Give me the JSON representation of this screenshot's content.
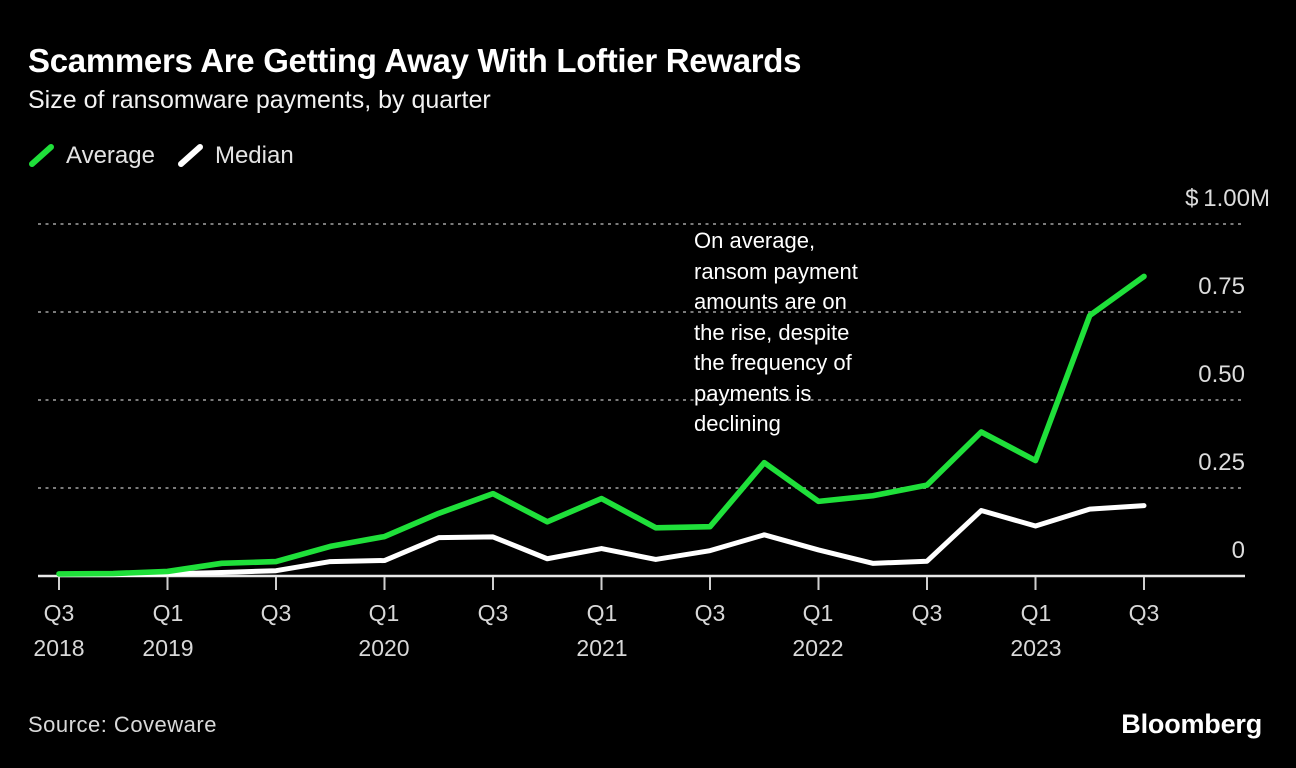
{
  "header": {
    "title": "Scammers Are Getting Away With Loftier Rewards",
    "subtitle": "Size of ransomware payments, by quarter"
  },
  "legend": [
    {
      "label": "Average",
      "color": "#1FE03A"
    },
    {
      "label": "Median",
      "color": "#FFFFFF"
    }
  ],
  "annotation": {
    "text": "On average, ransom payment amounts are on the rise, despite the frequency of payments is declining",
    "lines": [
      "On average,",
      "ransom payment",
      "amounts are on",
      "the rise, despite",
      "the frequency of",
      "payments is",
      "declining"
    ]
  },
  "footer": {
    "source": "Source: Coveware",
    "logo": "Bloomberg"
  },
  "colors": {
    "background": "#000000",
    "average_line": "#1FE03A",
    "median_line": "#FFFFFF",
    "gridline": "#7a7a7a",
    "axis": "#e8e8e8",
    "text": "#dcdcdc"
  },
  "chart_data": {
    "type": "line",
    "title": "Scammers Are Getting Away With Loftier Rewards",
    "subtitle": "Size of ransomware payments, by quarter",
    "unit": "USD millions",
    "grid": "horizontal-dashed",
    "legend_position": "top-left",
    "ylim": [
      0,
      1.0
    ],
    "x": [
      "Q3 2018",
      "Q4 2018",
      "Q1 2019",
      "Q2 2019",
      "Q3 2019",
      "Q4 2019",
      "Q1 2020",
      "Q2 2020",
      "Q3 2020",
      "Q4 2020",
      "Q1 2021",
      "Q2 2021",
      "Q3 2021",
      "Q4 2021",
      "Q1 2022",
      "Q2 2022",
      "Q3 2022",
      "Q4 2022",
      "Q1 2023",
      "Q2 2023",
      "Q3 2023"
    ],
    "series": [
      {
        "name": "Average",
        "color": "#1FE03A",
        "values": [
          0.006,
          0.007,
          0.013,
          0.036,
          0.041,
          0.084,
          0.112,
          0.178,
          0.234,
          0.154,
          0.22,
          0.137,
          0.14,
          0.322,
          0.212,
          0.228,
          0.258,
          0.409,
          0.328,
          0.74,
          0.851
        ]
      },
      {
        "name": "Median",
        "color": "#FFFFFF",
        "values": [
          0.004,
          0.004,
          0.006,
          0.01,
          0.015,
          0.041,
          0.044,
          0.109,
          0.111,
          0.049,
          0.078,
          0.047,
          0.072,
          0.117,
          0.074,
          0.036,
          0.042,
          0.186,
          0.142,
          0.19,
          0.2
        ]
      }
    ],
    "yticks": [
      {
        "value": 0,
        "label": "0"
      },
      {
        "value": 0.25,
        "label": "0.25"
      },
      {
        "value": 0.5,
        "label": "0.50"
      },
      {
        "value": 0.75,
        "label": "0.75"
      },
      {
        "value": 1.0,
        "label": "$ 1.00M"
      }
    ],
    "xticks": [
      {
        "index": 0,
        "label": "Q3",
        "year": "2018"
      },
      {
        "index": 2,
        "label": "Q1",
        "year": "2019"
      },
      {
        "index": 4,
        "label": "Q3"
      },
      {
        "index": 6,
        "label": "Q1",
        "year": "2020"
      },
      {
        "index": 8,
        "label": "Q3"
      },
      {
        "index": 10,
        "label": "Q1",
        "year": "2021"
      },
      {
        "index": 12,
        "label": "Q3"
      },
      {
        "index": 14,
        "label": "Q1",
        "year": "2022"
      },
      {
        "index": 16,
        "label": "Q3"
      },
      {
        "index": 18,
        "label": "Q1",
        "year": "2023"
      },
      {
        "index": 20,
        "label": "Q3"
      }
    ]
  }
}
